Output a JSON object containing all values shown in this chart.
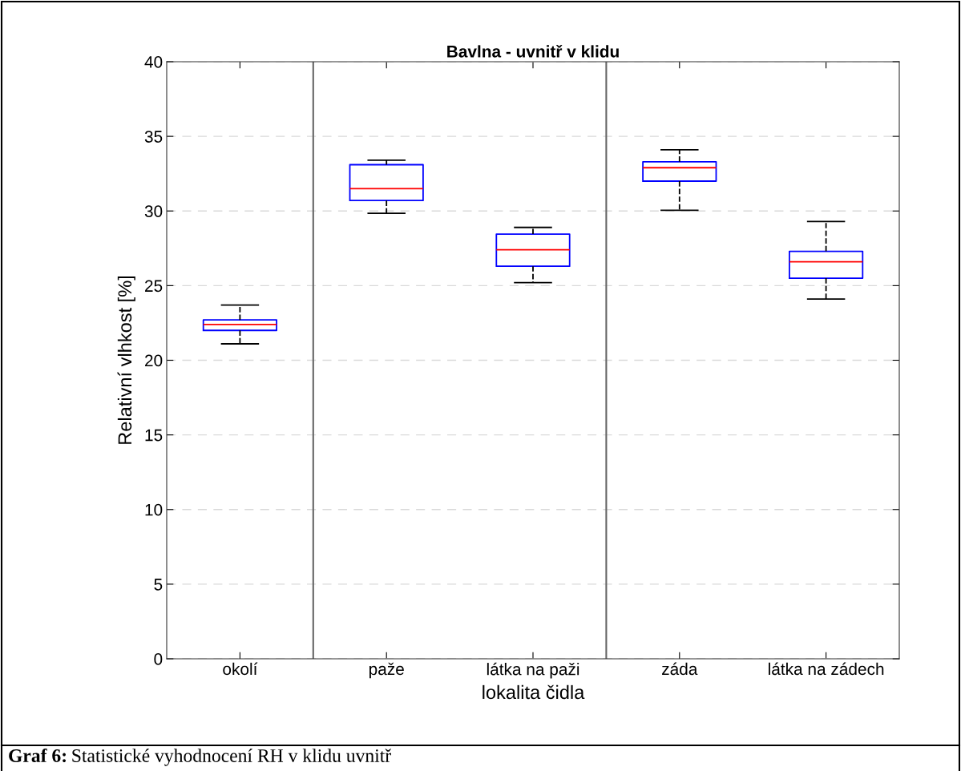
{
  "chart_data": {
    "type": "box",
    "title": "Bavlna - uvnitř v klidu",
    "xlabel": "lokalita čidla",
    "ylabel": "Relativní vlhkost [%]",
    "categories": [
      "okolí",
      "paže",
      "látka na paži",
      "záda",
      "látka na zádech"
    ],
    "series": [
      {
        "color": "#0000ff",
        "boxes": [
          {
            "low": 21.1,
            "q1": 22.0,
            "median": 22.4,
            "q3": 22.7,
            "high": 23.7
          },
          {
            "low": 29.85,
            "q1": 30.7,
            "median": 31.5,
            "q3": 33.1,
            "high": 33.4
          },
          {
            "low": 25.2,
            "q1": 26.3,
            "median": 27.4,
            "q3": 28.45,
            "high": 28.9
          },
          {
            "low": 30.05,
            "q1": 32.0,
            "median": 32.9,
            "q3": 33.3,
            "high": 34.1
          },
          {
            "low": 24.1,
            "q1": 25.5,
            "median": 26.6,
            "q3": 27.3,
            "high": 29.3
          }
        ]
      }
    ],
    "line_style": "dashed",
    "ylim": [
      0,
      40
    ],
    "yticks": [
      0,
      5,
      10,
      15,
      20,
      25,
      30,
      35,
      40
    ],
    "grid": "y",
    "annotations": [
      "Graf 6:",
      "Statistické vyhodnocení RH v klidu uvnitř"
    ]
  }
}
